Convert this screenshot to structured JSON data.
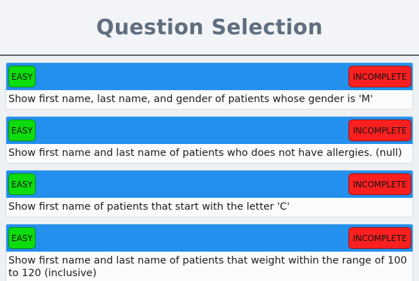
{
  "header": {
    "title": "Question Selection"
  },
  "questions": [
    {
      "difficulty": "EASY",
      "status": "INCOMPLETE",
      "text": "Show first name, last name, and gender of patients whose gender is 'M'"
    },
    {
      "difficulty": "EASY",
      "status": "INCOMPLETE",
      "text": "Show first name and last name of patients who does not have allergies. (null)"
    },
    {
      "difficulty": "EASY",
      "status": "INCOMPLETE",
      "text": "Show first name of patients that start with the letter 'C'"
    },
    {
      "difficulty": "EASY",
      "status": "INCOMPLETE",
      "text": "Show first name and last name of patients that weight within the range of 100 to 120 (inclusive)"
    }
  ],
  "colors": {
    "bar": "#2390ed",
    "easy": "#0ddc0d",
    "incomplete": "#fb2020",
    "title": "#5f6f80"
  }
}
